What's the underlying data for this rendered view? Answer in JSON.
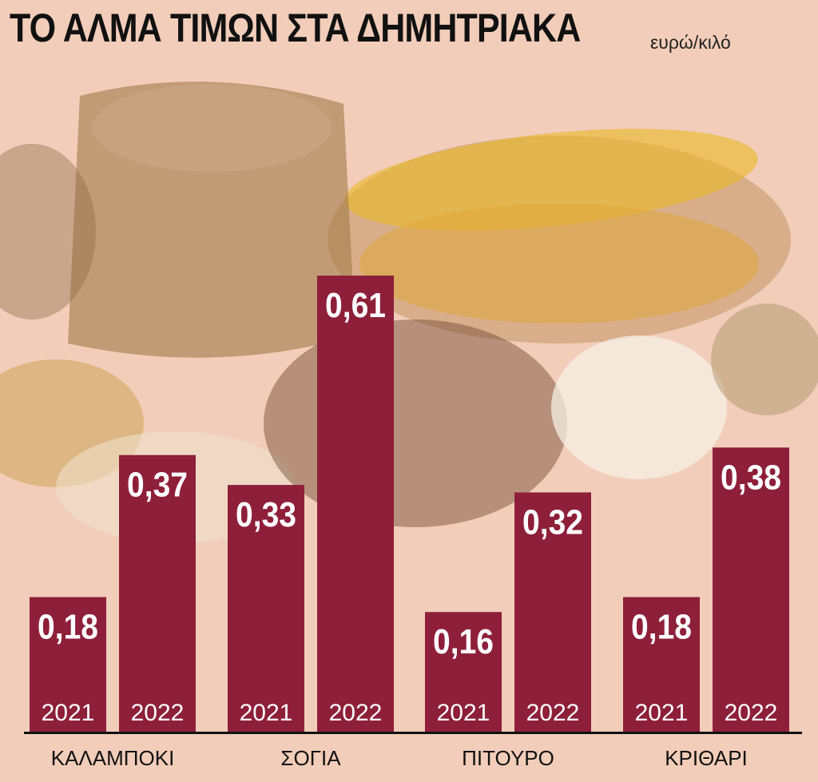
{
  "title": "ΤΟ ΑΛΜΑ ΤΙΜΩΝ ΣΤΑ ΔΗΜΗΤΡΙΑΚΑ",
  "unit": "ευρώ/κιλό",
  "colors": {
    "bar": "#8e1f3a",
    "background": "#f2cdb9",
    "text": "#111111"
  },
  "chart_data": {
    "type": "bar",
    "title": "ΤΟ ΑΛΜΑ ΤΙΜΩΝ ΣΤΑ ΔΗΜΗΤΡΙΑΚΑ",
    "ylabel": "ευρώ/κιλό",
    "categories": [
      "ΚΑΛΑΜΠΟΚΙ",
      "ΣΟΓΙΑ",
      "ΠΙΤΟΥΡΟ",
      "ΚΡΙΘΑΡΙ"
    ],
    "series": [
      {
        "name": "2021",
        "values": [
          0.18,
          0.33,
          0.16,
          0.18
        ],
        "labels": [
          "0,18",
          "0,33",
          "0,16",
          "0,18"
        ]
      },
      {
        "name": "2022",
        "values": [
          0.37,
          0.61,
          0.32,
          0.38
        ],
        "labels": [
          "0,37",
          "0,61",
          "0,32",
          "0,38"
        ]
      }
    ],
    "ylim": [
      0,
      0.61
    ],
    "grid": false,
    "legend": "none"
  }
}
